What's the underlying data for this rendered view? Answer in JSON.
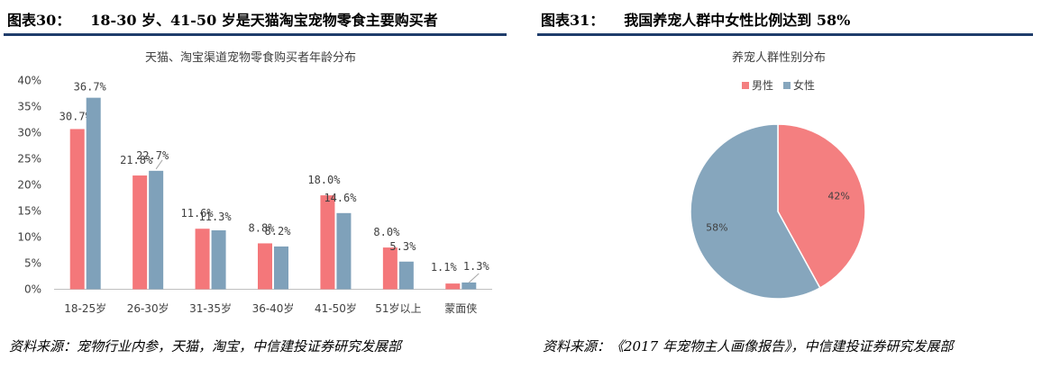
{
  "left": {
    "figure_label": "图表30：",
    "figure_title": "18-30 岁、41-50 岁是天猫淘宝宠物零食主要购买者",
    "source": "资料来源：宠物行业内参，天猫，淘宝，中信建投证券研究发展部",
    "colors": {
      "bar": "#f4777a",
      "bar_alt": "#7fa1ba",
      "rule": "#1f3d6b"
    }
  },
  "right": {
    "figure_label": "图表31：",
    "figure_title": "我国养宠人群中女性比例达到 58%",
    "source": "资料来源：《2017 年宠物主人画像报告》，中信建投证券研究发展部"
  },
  "chart_data": [
    {
      "type": "bar",
      "title": "天猫、淘宝渠道宠物零食购买者年龄分布",
      "categories": [
        "18-25岁",
        "26-30岁",
        "31-35岁",
        "36-40岁",
        "41-50岁",
        "51岁以上",
        "蒙面侠"
      ],
      "series": [
        {
          "values": [
            30.7,
            21.8,
            11.6,
            8.8,
            18.0,
            8.0,
            1.1
          ],
          "labels": [
            "30.7%",
            "21.8%",
            "11.6%",
            "8.8%",
            "18.0%",
            "8.0%",
            "1.1%"
          ],
          "color": "#f4777a"
        },
        {
          "values": [
            36.7,
            22.7,
            11.3,
            8.2,
            14.6,
            5.3,
            1.3
          ],
          "labels": [
            "36.7%",
            "22.7%",
            "11.3%",
            "8.2%",
            "14.6%",
            "5.3%",
            "1.3%"
          ],
          "color": "#7fa1ba"
        }
      ],
      "yticks": [
        "0%",
        "5%",
        "10%",
        "15%",
        "20%",
        "25%",
        "30%",
        "35%",
        "40%"
      ],
      "ylim": [
        0,
        40
      ],
      "xlabel": "",
      "ylabel": "",
      "grid": false,
      "legend": "none"
    },
    {
      "type": "pie",
      "title": "养宠人群性别分布",
      "labels": [
        "男性",
        "女性"
      ],
      "values": [
        42,
        58
      ],
      "value_labels": [
        "42%",
        "58%"
      ],
      "colors": [
        "#f47f80",
        "#86a6bd"
      ],
      "legend": "top"
    }
  ]
}
